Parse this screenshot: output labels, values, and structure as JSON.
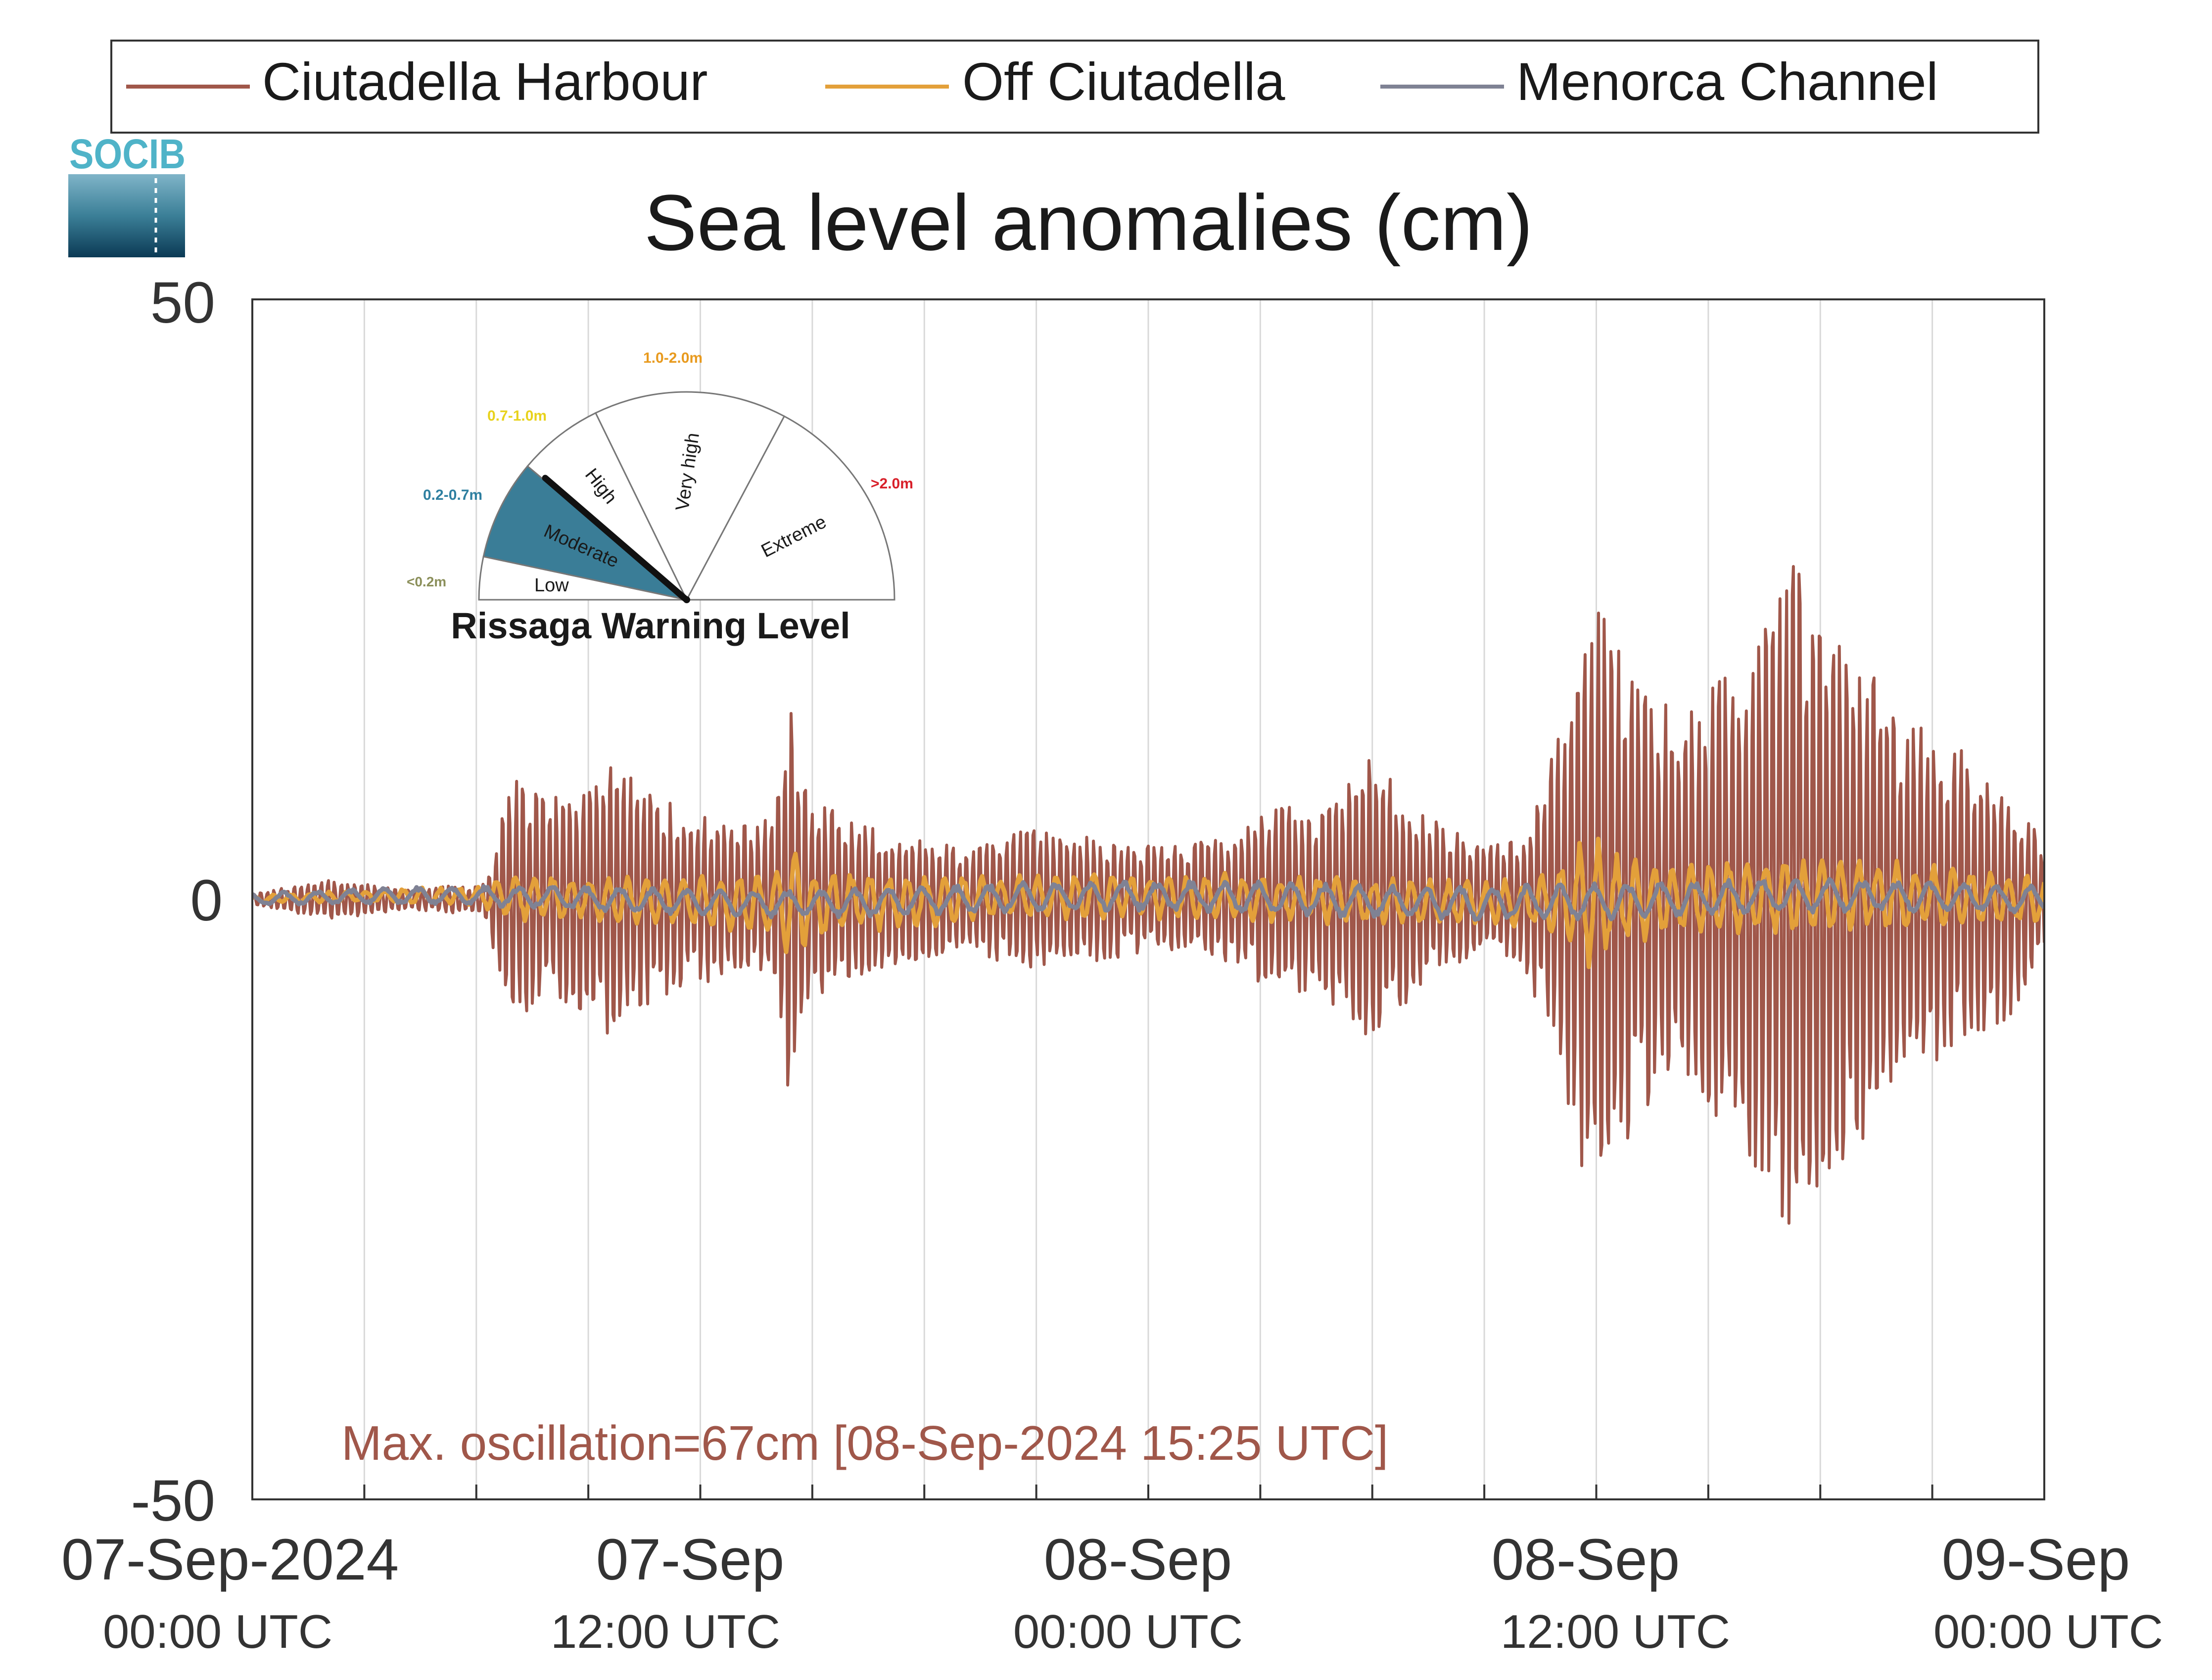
{
  "legend": {
    "placement": "top",
    "entries": [
      {
        "label": "Ciutadella Harbour",
        "color": "#a0574a"
      },
      {
        "label": "Off Ciutadella",
        "color": "#e3a03a"
      },
      {
        "label": "Menorca Channel",
        "color": "#7f8294"
      }
    ]
  },
  "logo": {
    "text": "SOCIB",
    "color": "#4fb3c8"
  },
  "gauge": {
    "title": "Rissaga Warning Level",
    "level": "Moderate",
    "sectors": [
      {
        "label": "Low",
        "range": "<0.2m",
        "range_color": "#8b8f5a",
        "fill": "#ffffff"
      },
      {
        "label": "Moderate",
        "range": "0.2-0.7m",
        "range_color": "#2e7fa0",
        "fill": "#3a7d97"
      },
      {
        "label": "High",
        "range": "0.7-1.0m",
        "range_color": "#e8d21c",
        "fill": "#ffffff"
      },
      {
        "label": "Very high",
        "range": "1.0-2.0m",
        "range_color": "#e89a1e",
        "fill": "#ffffff"
      },
      {
        "label": "Extreme",
        "range": ">2.0m",
        "range_color": "#d8202a",
        "fill": "#ffffff"
      }
    ]
  },
  "annotation": {
    "text": "Max. oscillation=67cm [08-Sep-2024 15:25 UTC]",
    "color": "#a0574a"
  },
  "chart_data": {
    "type": "line",
    "title": "Sea level anomalies (cm)",
    "xlabel": "",
    "ylabel": "",
    "ylim": [
      -50,
      50
    ],
    "xlim_hours": [
      0,
      48
    ],
    "grid": "vertical",
    "yticks": [
      {
        "value": 50,
        "label": "50"
      },
      {
        "value": 0,
        "label": "0"
      },
      {
        "value": -50,
        "label": "-50"
      }
    ],
    "xticks": [
      {
        "hour": 0,
        "line1": "07-Sep-2024",
        "line2": "00:00 UTC"
      },
      {
        "hour": 12,
        "line1": "07-Sep",
        "line2": "12:00 UTC"
      },
      {
        "hour": 24,
        "line1": "08-Sep",
        "line2": "00:00 UTC"
      },
      {
        "hour": 36,
        "line1": "08-Sep",
        "line2": "12:00 UTC"
      },
      {
        "hour": 48,
        "line1": "09-Sep",
        "line2": "00:00 UTC"
      }
    ],
    "series": [
      {
        "name": "Ciutadella Harbour",
        "color": "#a0574a",
        "envelope_hours": [
          0,
          2,
          4,
          6.2,
          7,
          8,
          9.5,
          10.5,
          11.5,
          13,
          14,
          14.4,
          15,
          16,
          17.5,
          19,
          21,
          23,
          24.5,
          26,
          27.5,
          28.5,
          30,
          31.5,
          33,
          34,
          35,
          35.8,
          36.5,
          37.5,
          38.5,
          39.5,
          40.5,
          41.2,
          42,
          43,
          44,
          45,
          46,
          47,
          48
        ],
        "envelope_amplitude_cm": [
          0.5,
          2,
          1,
          1.5,
          12,
          10,
          13,
          11,
          9,
          7,
          8,
          20,
          10,
          8,
          6,
          5,
          7,
          6,
          5,
          6,
          9,
          9,
          14,
          8,
          5,
          6,
          16,
          30,
          26,
          20,
          18,
          22,
          27,
          35,
          28,
          24,
          18,
          16,
          14,
          12,
          5
        ]
      },
      {
        "name": "Off Ciutadella",
        "color": "#e3a03a",
        "envelope_hours": [
          0,
          6,
          7,
          10,
          13,
          14,
          14.4,
          15,
          17,
          20,
          24,
          28,
          32,
          34,
          35,
          35.8,
          36.5,
          38,
          40,
          42,
          44,
          46,
          48
        ],
        "envelope_amplitude_cm": [
          0.3,
          0.8,
          2,
          2,
          2.5,
          3,
          6,
          3,
          2.5,
          2,
          2,
          2,
          2,
          2,
          3,
          6,
          4,
          3,
          3.5,
          3,
          3,
          2.5,
          2
        ]
      },
      {
        "name": "Menorca Channel",
        "color": "#7f8294",
        "envelope_hours": [
          0,
          12,
          24,
          36,
          48
        ],
        "envelope_amplitude_cm": [
          0.5,
          1.2,
          1.3,
          1.6,
          1.2
        ]
      }
    ]
  }
}
